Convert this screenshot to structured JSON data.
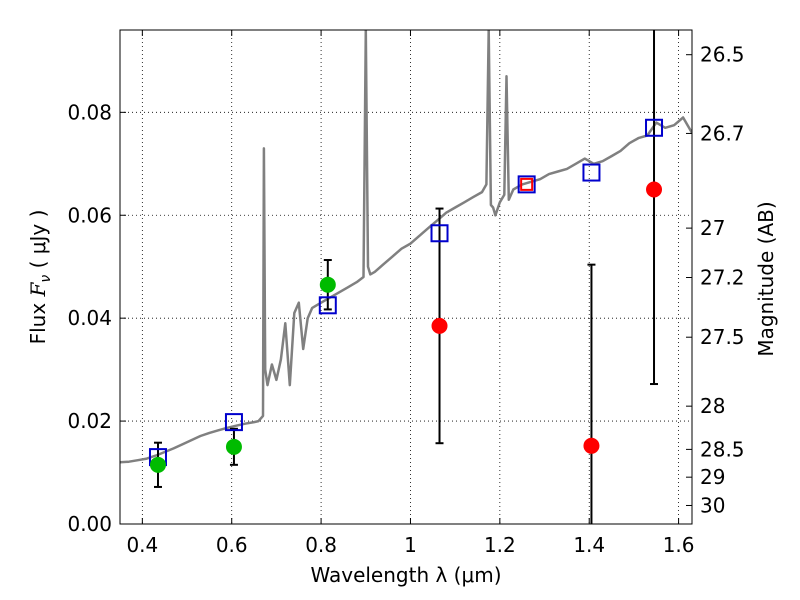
{
  "chart_data": {
    "type": "scatter",
    "xlabel": "Wavelength  λ (μm)",
    "ylabel": "Flux  F_ν  ( μJy )",
    "ylabel_parts": {
      "pre": "Flux  ",
      "sym": "F",
      "sub": "ν",
      "post": "  ( μJy )"
    },
    "y2label": "Magnitude (AB)",
    "xlim": [
      0.35,
      1.63
    ],
    "ylim": [
      0.0,
      0.096
    ],
    "grid": true,
    "x_ticks": [
      0.4,
      0.6,
      0.8,
      1.0,
      1.2,
      1.4,
      1.6
    ],
    "x_tick_labels": [
      "0.4",
      "0.6",
      "0.8",
      "1",
      "1.2",
      "1.4",
      "1.6"
    ],
    "y_ticks": [
      0.0,
      0.02,
      0.04,
      0.06,
      0.08
    ],
    "y_tick_labels": [
      "0.00",
      "0.02",
      "0.04",
      "0.06",
      "0.08"
    ],
    "y2_ticks": [
      {
        "label": "26.5",
        "flux": 0.0912
      },
      {
        "label": "26.7",
        "flux": 0.0759
      },
      {
        "label": "27",
        "flux": 0.0575
      },
      {
        "label": "27.2",
        "flux": 0.0479
      },
      {
        "label": "27.5",
        "flux": 0.0363
      },
      {
        "label": "28",
        "flux": 0.0229
      },
      {
        "label": "28.5",
        "flux": 0.0145
      },
      {
        "label": "29",
        "flux": 0.0091
      },
      {
        "label": "30",
        "flux": 0.0036
      }
    ],
    "series": [
      {
        "kind": "line",
        "color": "#808080",
        "x": [
          0.35,
          0.37,
          0.39,
          0.41,
          0.43,
          0.45,
          0.47,
          0.49,
          0.51,
          0.53,
          0.55,
          0.57,
          0.59,
          0.61,
          0.63,
          0.65,
          0.66,
          0.67,
          0.672,
          0.675,
          0.68,
          0.69,
          0.7,
          0.71,
          0.72,
          0.73,
          0.74,
          0.75,
          0.76,
          0.77,
          0.78,
          0.79,
          0.8,
          0.82,
          0.84,
          0.86,
          0.88,
          0.895,
          0.9,
          0.905,
          0.91,
          0.92,
          0.94,
          0.96,
          0.98,
          1.0,
          1.02,
          1.04,
          1.06,
          1.08,
          1.1,
          1.12,
          1.14,
          1.16,
          1.17,
          1.175,
          1.18,
          1.185,
          1.19,
          1.2,
          1.21,
          1.215,
          1.22,
          1.23,
          1.25,
          1.27,
          1.29,
          1.31,
          1.33,
          1.35,
          1.37,
          1.39,
          1.41,
          1.43,
          1.45,
          1.47,
          1.49,
          1.51,
          1.53,
          1.55,
          1.57,
          1.59,
          1.61,
          1.63
        ],
        "y": [
          0.012,
          0.0121,
          0.0124,
          0.0127,
          0.0133,
          0.014,
          0.0147,
          0.0155,
          0.0163,
          0.0171,
          0.0177,
          0.0182,
          0.0187,
          0.0191,
          0.0195,
          0.0198,
          0.02,
          0.021,
          0.073,
          0.03,
          0.027,
          0.031,
          0.028,
          0.032,
          0.039,
          0.027,
          0.041,
          0.043,
          0.034,
          0.04,
          0.042,
          0.0425,
          0.043,
          0.044,
          0.045,
          0.046,
          0.047,
          0.048,
          0.096,
          0.05,
          0.0485,
          0.049,
          0.0505,
          0.052,
          0.0535,
          0.0545,
          0.056,
          0.0575,
          0.059,
          0.0605,
          0.0615,
          0.0625,
          0.0635,
          0.0645,
          0.066,
          0.096,
          0.062,
          0.0615,
          0.06,
          0.0625,
          0.064,
          0.087,
          0.063,
          0.065,
          0.066,
          0.0665,
          0.067,
          0.068,
          0.0685,
          0.069,
          0.07,
          0.071,
          0.07,
          0.0705,
          0.0715,
          0.0725,
          0.074,
          0.075,
          0.0755,
          0.078,
          0.077,
          0.0775,
          0.079,
          0.076
        ]
      },
      {
        "kind": "scatter",
        "marker": "square",
        "color": "#0000cc",
        "x": [
          0.435,
          0.605,
          0.815,
          1.065,
          1.26,
          1.405,
          1.545
        ],
        "y": [
          0.013,
          0.0198,
          0.0425,
          0.0565,
          0.066,
          0.0683,
          0.077
        ]
      },
      {
        "kind": "errorbar",
        "marker": "circle",
        "color": "#00bb00",
        "x": [
          0.435,
          0.605,
          0.815
        ],
        "y": [
          0.0115,
          0.015,
          0.0465
        ],
        "yerr": [
          0.0043,
          0.0035,
          0.0048
        ]
      },
      {
        "kind": "errorbar",
        "marker": "circle",
        "color": "#ff0000",
        "x": [
          1.065,
          1.405,
          1.545
        ],
        "y": [
          0.0385,
          0.0152,
          0.065
        ],
        "yerr": [
          0.0228,
          0.0352,
          0.0378
        ]
      },
      {
        "kind": "scatter",
        "marker": "square",
        "color": "#ff0000",
        "x": [
          1.26
        ],
        "y": [
          0.066
        ]
      }
    ]
  }
}
